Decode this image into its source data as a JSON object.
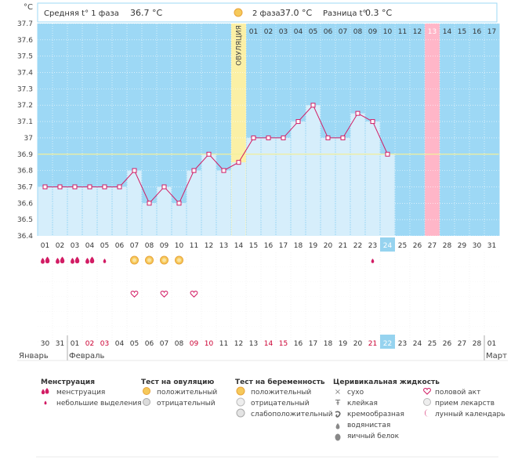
{
  "header": {
    "unit": "°C",
    "phase1_label": "Средняя t° 1 фаза",
    "phase1_value": "36.7 °C",
    "phase2_label": "2 фаза",
    "phase2_value": "37.0 °C",
    "diff_label": "Разница t°",
    "diff_value": "0.3 °C"
  },
  "colors": {
    "phase1_bg": "#9dd8f5",
    "phase2_bg": "#9dd8f5",
    "ovulation_bg": "#fbf0a6",
    "highlight_bg": "#ffb6c8",
    "bar_fill": "#d6eefb",
    "line": "#d21c64",
    "today": "#96d3ef",
    "red_text": "#cc0033"
  },
  "chart_data": {
    "type": "line",
    "ylabel": "°C",
    "ylim": [
      36.4,
      37.7
    ],
    "yticks": [
      "36.4",
      "36.5",
      "36.6",
      "36.7",
      "36.8",
      "36.9",
      "37",
      "37.1",
      "37.2",
      "37.3",
      "37.4",
      "37.5",
      "37.6",
      "37.7"
    ],
    "cycle_days": [
      "01",
      "02",
      "03",
      "04",
      "05",
      "06",
      "07",
      "08",
      "09",
      "10",
      "11",
      "12",
      "13",
      "14",
      "15",
      "16",
      "17",
      "18",
      "19",
      "20",
      "21",
      "22",
      "23",
      "24",
      "25",
      "26",
      "27",
      "28",
      "29",
      "30",
      "31"
    ],
    "temperatures": [
      36.7,
      36.7,
      36.7,
      36.7,
      36.7,
      36.7,
      36.8,
      36.6,
      36.7,
      36.6,
      36.8,
      36.9,
      36.8,
      36.85,
      37.0,
      37.0,
      37.0,
      37.1,
      37.2,
      37.0,
      37.0,
      37.15,
      37.1,
      36.9
    ],
    "coverline": 36.9,
    "ovulation_day_index": 13,
    "ovulation_label": "ОВУЛЯЦИЯ",
    "phase2_day_labels": [
      "01",
      "02",
      "03",
      "04",
      "05",
      "06",
      "07",
      "08",
      "09",
      "10",
      "11",
      "12",
      "13",
      "14",
      "15",
      "16",
      "17"
    ],
    "phase2_highlight_index": 12,
    "today_index": 23,
    "calendar_dates": [
      "30",
      "31",
      "01",
      "02",
      "03",
      "04",
      "05",
      "06",
      "07",
      "08",
      "09",
      "10",
      "11",
      "12",
      "13",
      "14",
      "15",
      "16",
      "17",
      "18",
      "19",
      "20",
      "21",
      "22",
      "23",
      "24",
      "25",
      "26",
      "27",
      "28",
      "01"
    ],
    "calendar_weekend": [
      false,
      false,
      false,
      true,
      true,
      false,
      false,
      false,
      false,
      false,
      true,
      true,
      false,
      false,
      false,
      true,
      true,
      false,
      false,
      false,
      false,
      false,
      true,
      true,
      false,
      false,
      false,
      false,
      false,
      false,
      false
    ],
    "months": [
      {
        "label": "Январь",
        "index": 0
      },
      {
        "label": "Февраль",
        "index": 2
      },
      {
        "label": "Март",
        "index": 30
      }
    ],
    "menstruation": [
      "heavy",
      "heavy",
      "heavy",
      "heavy",
      "light",
      null,
      null,
      null,
      null,
      null,
      null,
      null,
      null,
      null,
      null,
      null,
      null,
      null,
      null,
      null,
      null,
      null,
      "light",
      null
    ],
    "ovulation_tests": [
      null,
      null,
      null,
      null,
      null,
      null,
      "positive",
      "positive",
      "positive",
      "positive"
    ],
    "intercourse": [
      null,
      null,
      null,
      null,
      null,
      null,
      true,
      null,
      true,
      null,
      true
    ]
  },
  "legend": {
    "menstruation": {
      "title": "Менструация",
      "items": [
        "менструация",
        "небольшие выделения"
      ]
    },
    "ovulation_test": {
      "title": "Тест на овуляцию",
      "items": [
        "положительный",
        "отрицательный"
      ]
    },
    "pregnancy_test": {
      "title": "Тест на беременность",
      "items": [
        "положительный",
        "отрицательный",
        "слабоположительный"
      ]
    },
    "cervical": {
      "title": "Церивикальная жидкость",
      "items": [
        "сухо",
        "клейкая",
        "кремообразная",
        "водянистая",
        "яичный белок"
      ]
    },
    "other": {
      "items": [
        "половой акт",
        "прием лекарств",
        "лунный календарь"
      ]
    }
  }
}
